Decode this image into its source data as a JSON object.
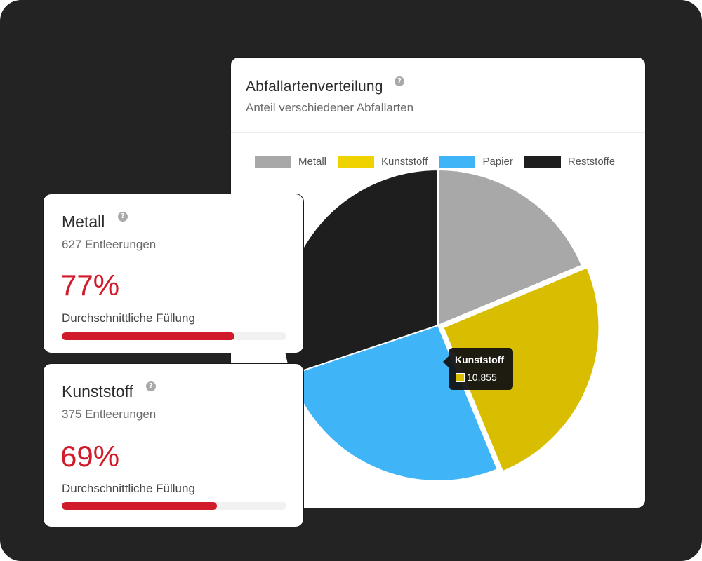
{
  "colors": {
    "metall": "#a8a8a8",
    "kunststoff": "#d9bd00",
    "papier": "#3fb5f7",
    "reststoffe": "#1e1e1e",
    "accent": "#d11a2a"
  },
  "chart_card": {
    "title": "Abfallartenverteilung",
    "subtitle": "Anteil verschiedener Abfallarten",
    "help_icon": "question-circle-icon"
  },
  "chart_data": {
    "type": "pie",
    "title": "Abfallartenverteilung",
    "subtitle": "Anteil verschiedener Abfallarten",
    "legend_position": "top",
    "categories": [
      "Metall",
      "Kunststoff",
      "Papier",
      "Reststoffe"
    ],
    "values": [
      8100,
      10855,
      11300,
      13050
    ],
    "highlighted": "Kunststoff",
    "tooltip": {
      "label": "Kunststoff",
      "value": "10,855"
    }
  },
  "stats": [
    {
      "title": "Metall",
      "subtitle": "627 Entleerungen",
      "percent": "77%",
      "fill": 0.77,
      "label": "Durchschnittliche Füllung"
    },
    {
      "title": "Kunststoff",
      "subtitle": "375 Entleerungen",
      "percent": "69%",
      "fill": 0.69,
      "label": "Durchschnittliche Füllung"
    }
  ]
}
